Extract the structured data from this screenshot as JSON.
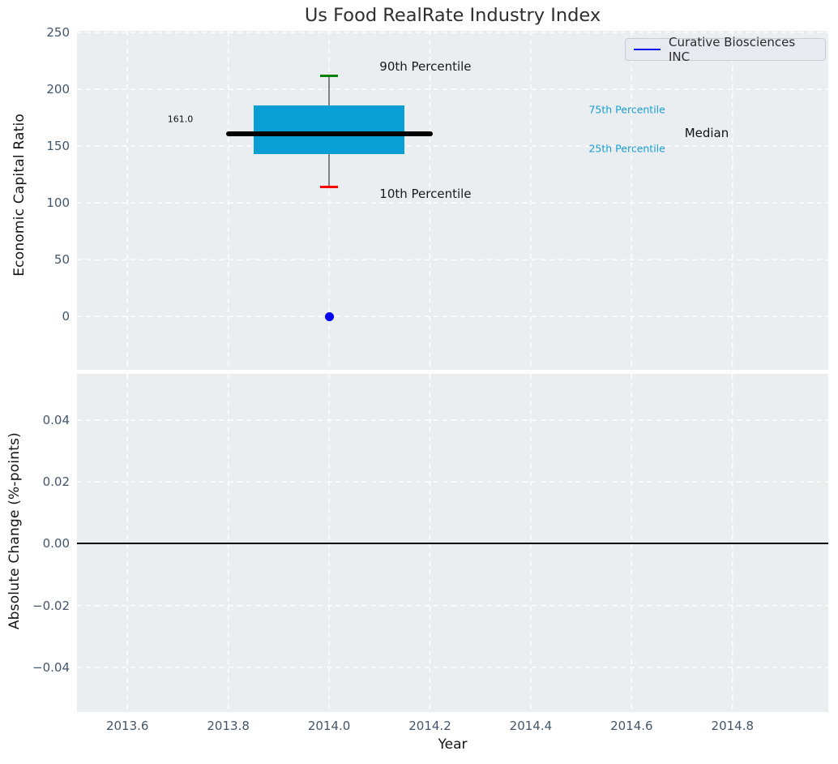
{
  "title": "Us Food RealRate Industry Index",
  "colors": {
    "figure_background": "#ffffff",
    "plot_background": "#eaeef0",
    "grid_line": "#ffffff",
    "tick_label": "#44566b",
    "axis_label": "#141414",
    "title_text": "#2e2e2e",
    "box_fill": "#0a9fd4",
    "median_line": "#000000",
    "whisker_line": "#808080",
    "p90_cap": "#008000",
    "p10_cap": "#ff0000",
    "company_point": "#0000ee",
    "legend_line": "#0000ee",
    "legend_background": "#e8eaf1",
    "legend_border": "#c9ccd3",
    "legend_text": "#2b2b2b",
    "zero_line": "#000000",
    "percentile_label": "#189fd4"
  },
  "chart_data": [
    {
      "type": "box",
      "title": "Us Food RealRate Industry Index",
      "ylabel": "Economic Capital Ratio",
      "xlabel": "Year",
      "xlim": [
        2013.5,
        2014.99
      ],
      "ylim": [
        -47,
        251.5
      ],
      "xticks": [
        2013.6,
        2013.8,
        2014.0,
        2014.2,
        2014.4,
        2014.6,
        2014.8
      ],
      "xtick_labels": [
        "2013.6",
        "2013.8",
        "2014.0",
        "2014.2",
        "2014.4",
        "2014.6",
        "2014.8"
      ],
      "yticks": [
        0,
        50,
        100,
        150,
        200,
        250
      ],
      "ytick_labels": [
        "0",
        "50",
        "100",
        "150",
        "200",
        "250"
      ],
      "grid": true,
      "legend": {
        "label": "Curative Biosciences INC",
        "position": "upper right"
      },
      "box": {
        "x": 2014.0,
        "p10": 114,
        "p25": 143,
        "median": 161,
        "p75": 186,
        "p90": 212,
        "median_label": "161.0",
        "box_x_span": [
          2013.85,
          2014.15
        ],
        "median_x_span": [
          2013.795,
          2014.205
        ],
        "cap_x_halfwidth": 0.018
      },
      "points": [
        {
          "name": "Curative Biosciences INC",
          "x": 2014.0,
          "y": 0
        }
      ],
      "annotations": [
        {
          "id": "p90-label",
          "text": "90th Percentile",
          "x": 2014.1,
          "y": 220,
          "align": "left",
          "size": 15,
          "color": "#1a1a1a"
        },
        {
          "id": "p10-label",
          "text": "10th Percentile",
          "x": 2014.1,
          "y": 108,
          "align": "left",
          "size": 15,
          "color": "#1a1a1a"
        },
        {
          "id": "median-value-label",
          "text": "161.0",
          "x": 2013.705,
          "y": 174,
          "align": "center",
          "size": 11,
          "color": "#111111"
        },
        {
          "id": "p75-label",
          "text": "75th Percentile",
          "x": 2014.515,
          "y": 182,
          "align": "left",
          "size": 12.5,
          "color": "#189fd4"
        },
        {
          "id": "median-label",
          "text": "Median",
          "x": 2014.705,
          "y": 161.5,
          "align": "left",
          "size": 15,
          "color": "#111111"
        },
        {
          "id": "p25-label",
          "text": "25th Percentile",
          "x": 2014.515,
          "y": 148,
          "align": "left",
          "size": 12.5,
          "color": "#189fd4"
        }
      ]
    },
    {
      "type": "line",
      "ylabel": "Absolute Change (%-points)",
      "xlabel": "Year",
      "xlim": [
        2013.5,
        2014.99
      ],
      "ylim": [
        -0.0545,
        0.055
      ],
      "xticks": [
        2013.6,
        2013.8,
        2014.0,
        2014.2,
        2014.4,
        2014.6,
        2014.8
      ],
      "xtick_labels": [
        "2013.6",
        "2013.8",
        "2014.0",
        "2014.2",
        "2014.4",
        "2014.6",
        "2014.8"
      ],
      "yticks": [
        -0.04,
        -0.02,
        0,
        0.02,
        0.04
      ],
      "ytick_labels": [
        "−0.04",
        "−0.02",
        "0.00",
        "0.02",
        "0.04"
      ],
      "grid": true,
      "zero_line_y": 0,
      "series": []
    }
  ]
}
